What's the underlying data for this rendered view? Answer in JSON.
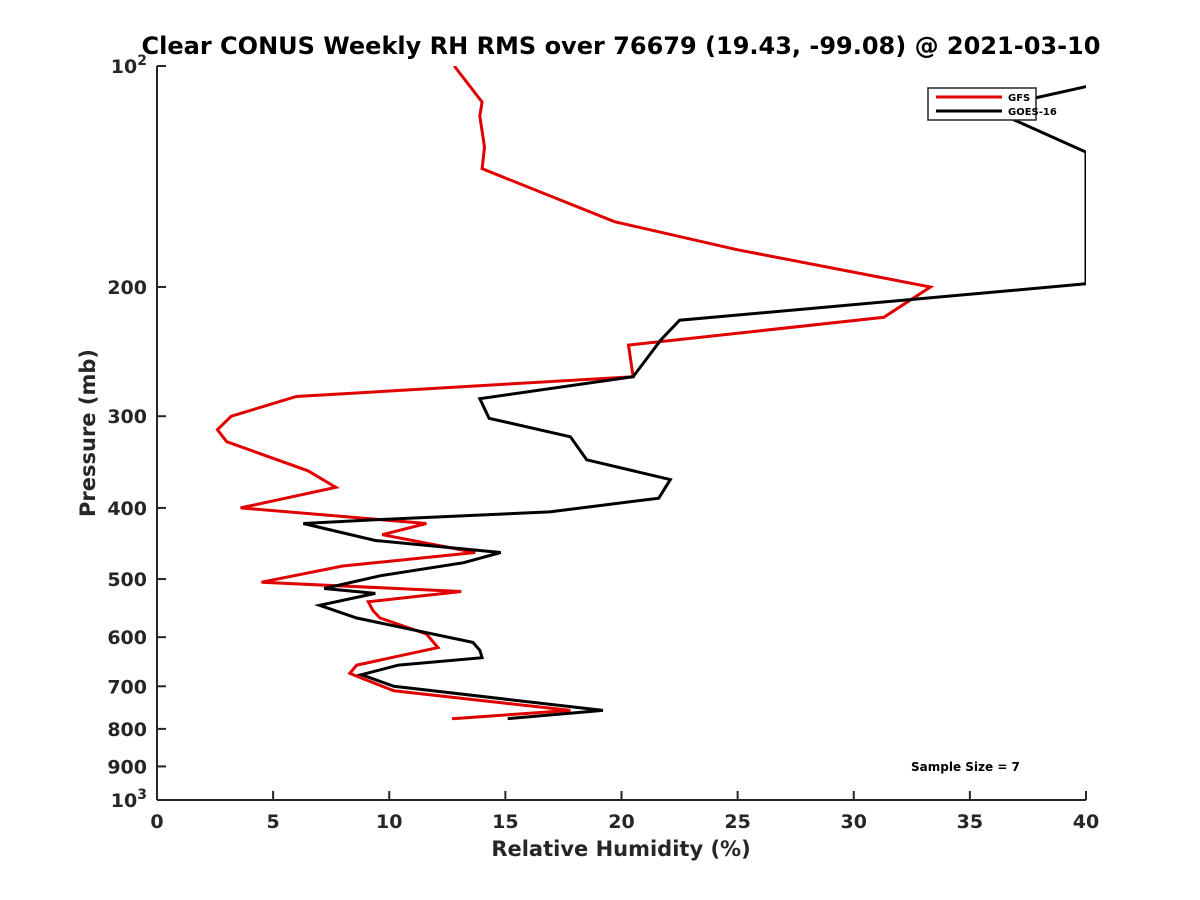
{
  "chart_data": {
    "type": "line",
    "title": "Clear CONUS Weekly RH RMS over 76679 (19.43, -99.08) @ 2021-03-10",
    "xlabel": "Relative Humidity (%)",
    "ylabel": "Pressure (mb)",
    "xlim": [
      0,
      40
    ],
    "ylim": [
      100,
      1000
    ],
    "y_scale": "log",
    "y_reversed": true,
    "x_ticks": [
      "0",
      "5",
      "10",
      "15",
      "20",
      "25",
      "30",
      "35",
      "40"
    ],
    "y_ticks": [
      {
        "value": 100,
        "base": "10",
        "exp": "2"
      },
      {
        "value": 200,
        "label": "200"
      },
      {
        "value": 300,
        "label": "300"
      },
      {
        "value": 400,
        "label": "400"
      },
      {
        "value": 500,
        "label": "500"
      },
      {
        "value": 600,
        "label": "600"
      },
      {
        "value": 700,
        "label": "700"
      },
      {
        "value": 800,
        "label": "800"
      },
      {
        "value": 900,
        "label": "900"
      },
      {
        "value": 1000,
        "base": "10",
        "exp": "3"
      }
    ],
    "legend_position": "top-right",
    "grid": false,
    "annotation": "Sample Size = 7",
    "series": [
      {
        "name": "GFS",
        "color": "#e00000",
        "x": [
          12.8,
          14.0,
          13.9,
          14.1,
          14.0,
          19.7,
          25.0,
          33.3,
          31.3,
          20.3,
          20.5,
          6.0,
          3.2,
          2.6,
          3.0,
          6.5,
          7.7,
          3.6,
          11.6,
          9.7,
          13.7,
          8.0,
          4.5,
          13.1,
          9.1,
          9.3,
          9.6,
          11.6,
          12.1,
          8.6,
          8.3,
          8.7,
          10.2,
          17.8,
          12.7
        ],
        "y": [
          100,
          112,
          117,
          129,
          138,
          163,
          178,
          200,
          220,
          240,
          265,
          282,
          300,
          313,
          325,
          356,
          375,
          400,
          420,
          435,
          460,
          480,
          505,
          520,
          537,
          552,
          565,
          594,
          620,
          655,
          672,
          680,
          710,
          755,
          775
        ]
      },
      {
        "name": "GOES-16",
        "color": "#000000",
        "x": [
          44.0,
          37.0,
          36.8,
          40.0,
          40.0,
          22.5,
          21.7,
          20.5,
          13.9,
          14.3,
          17.8,
          18.5,
          22.1,
          21.6,
          16.9,
          9.5,
          6.3,
          9.4,
          14.8,
          13.2,
          9.6,
          7.2,
          9.4,
          7.0,
          8.6,
          13.6,
          13.9,
          14.0,
          10.4,
          8.8,
          10.2,
          19.2,
          15.1
        ],
        "y": [
          100,
          112,
          118,
          131,
          198,
          222,
          236,
          265,
          284,
          302,
          320,
          344,
          366,
          388,
          405,
          415,
          420,
          443,
          460,
          475,
          495,
          515,
          523,
          543,
          565,
          610,
          625,
          640,
          655,
          675,
          700,
          755,
          775
        ]
      }
    ]
  }
}
